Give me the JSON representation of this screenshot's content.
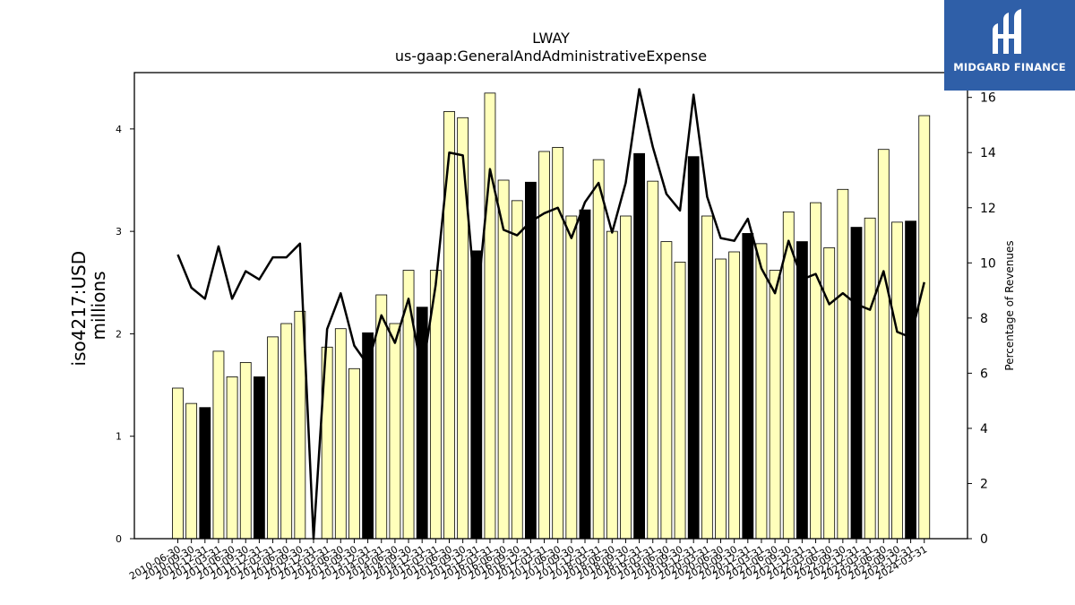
{
  "title": "LWAY",
  "subtitle": "us-gaap:GeneralAndAdministrativeExpense",
  "ylabel_left": "iso4217:USD millions",
  "ylabel_left_lines": [
    "iso4217:USD",
    "millions"
  ],
  "ylabel_right": "Percentage of Revenues",
  "logo": {
    "text": "MIDGARD FINANCE",
    "background": "#2f5fa8"
  },
  "colors": {
    "bar_default": "#ffffbb",
    "bar_highlight": "#000000",
    "line": "#000000",
    "edge": "#000000"
  },
  "chart_data": {
    "type": "bar",
    "categories": [
      "2010-06-30",
      "2010-09-30",
      "2010-12-31",
      "2011-03-31",
      "2011-06-30",
      "2011-09-30",
      "2011-12-31",
      "2012-03-31",
      "2012-06-30",
      "2012-09-30",
      "2012-12-31",
      "2013-03-31",
      "2013-06-30",
      "2013-09-30",
      "2013-12-31",
      "2014-03-31",
      "2014-06-30",
      "2014-09-30",
      "2014-12-31",
      "2015-03-31",
      "2015-06-30",
      "2015-09-30",
      "2015-12-31",
      "2016-03-31",
      "2016-06-30",
      "2016-09-30",
      "2016-12-31",
      "2017-03-31",
      "2017-06-30",
      "2017-09-30",
      "2017-12-31",
      "2018-03-31",
      "2018-06-30",
      "2018-09-30",
      "2018-12-31",
      "2019-03-31",
      "2019-06-30",
      "2019-09-30",
      "2019-12-31",
      "2020-03-31",
      "2020-06-30",
      "2020-09-30",
      "2020-12-31",
      "2021-03-31",
      "2021-06-30",
      "2021-09-30",
      "2021-12-31",
      "2022-03-31",
      "2022-06-30",
      "2022-09-30",
      "2022-12-31",
      "2023-03-31",
      "2023-06-30",
      "2023-09-30",
      "2023-12-31",
      "2024-03-31"
    ],
    "series": [
      {
        "axis": "left",
        "values": [
          1.47,
          1.32,
          1.28,
          1.83,
          1.58,
          1.72,
          1.58,
          1.97,
          2.1,
          2.22,
          0.0,
          1.87,
          2.05,
          1.66,
          2.01,
          2.38,
          2.1,
          2.62,
          2.26,
          2.62,
          4.17,
          4.11,
          2.81,
          4.35,
          3.5,
          3.3,
          3.48,
          3.78,
          3.82,
          3.15,
          3.21,
          3.7,
          3.0,
          3.15,
          3.76,
          3.49,
          2.9,
          2.7,
          3.73,
          3.15,
          2.73,
          2.8,
          2.98,
          2.88,
          2.62,
          3.19,
          2.9,
          3.28,
          2.84,
          3.41,
          3.04,
          3.13,
          3.8,
          3.09,
          3.1,
          4.13
        ],
        "highlight": [
          false,
          false,
          true,
          false,
          false,
          false,
          true,
          false,
          false,
          false,
          false,
          false,
          false,
          false,
          true,
          false,
          false,
          false,
          true,
          false,
          false,
          false,
          true,
          false,
          false,
          false,
          true,
          false,
          false,
          false,
          true,
          false,
          false,
          false,
          true,
          false,
          false,
          false,
          true,
          false,
          false,
          false,
          true,
          false,
          false,
          false,
          true,
          false,
          false,
          false,
          true,
          false,
          false,
          false,
          true,
          false
        ]
      },
      {
        "axis": "right",
        "type": "line",
        "values": [
          10.3,
          9.1,
          8.7,
          10.6,
          8.7,
          9.7,
          9.4,
          10.2,
          10.2,
          10.7,
          0.0,
          7.6,
          8.9,
          7.0,
          6.3,
          8.1,
          7.1,
          8.7,
          6.0,
          9.2,
          14.0,
          13.9,
          8.3,
          13.4,
          11.2,
          11.0,
          11.5,
          11.8,
          12.0,
          10.9,
          12.2,
          12.9,
          11.1,
          12.9,
          16.3,
          14.2,
          12.5,
          11.9,
          16.1,
          12.4,
          10.9,
          10.8,
          11.6,
          9.8,
          8.9,
          10.8,
          9.4,
          9.6,
          8.5,
          8.9,
          8.5,
          8.3,
          9.7,
          7.5,
          7.3,
          9.3
        ]
      }
    ],
    "y_left": {
      "lim": [
        0,
        4.55
      ],
      "ticks": [
        0,
        1,
        2,
        3,
        4
      ]
    },
    "y_right": {
      "lim": [
        0,
        16.9
      ],
      "ticks": [
        0,
        2,
        4,
        6,
        8,
        10,
        12,
        14,
        16
      ]
    },
    "grid": false,
    "legend": "none"
  }
}
